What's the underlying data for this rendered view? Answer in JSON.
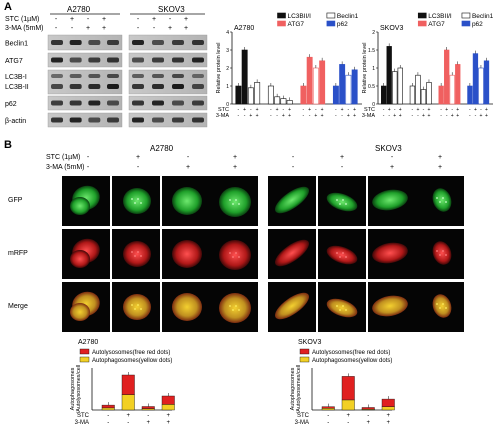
{
  "panel_a": {
    "label": "A",
    "treatment_labels": [
      "STC (1µM)",
      "3-MA (5mM)"
    ],
    "cell_lines": [
      "A2780",
      "SKOV3"
    ],
    "signs": [
      [
        "-",
        "+",
        "-",
        "+"
      ],
      [
        "-",
        "-",
        "+",
        "+"
      ]
    ],
    "blot_rows": [
      "Beclin1",
      "ATG7",
      "LC3B-I",
      "LC3B-II",
      "p62",
      "β-actin"
    ],
    "chart_ylabel": "Relative protein level",
    "chart_xrow_labels": [
      "STC",
      "3-MA"
    ]
  },
  "panel_b": {
    "label": "B",
    "treatment_labels": [
      "STC (1µM)",
      "3-MA (5mM)"
    ],
    "cell_lines": [
      "A2780",
      "SKOV3"
    ],
    "row_labels": [
      "GFP",
      "mRFP",
      "Merge"
    ],
    "chart_ylabel": "Autophagosomes\n/Autolysosomes/cell",
    "chart_xrow_labels": [
      "STC",
      "3-MA"
    ]
  },
  "colors": {
    "red": "#e02020",
    "yellow": "#f2d024",
    "black": "#111111",
    "blue": "#2a50c8",
    "lightred": "#f06060",
    "green": "#2ec83a"
  },
  "chart_data": [
    {
      "type": "bar",
      "title": "A2780",
      "ylabel": "Relative protein level",
      "ylim": [
        0,
        4
      ],
      "groups": [
        "LC3BII/I",
        "Beclin1",
        "ATG7",
        "p62"
      ],
      "categories": [
        "-/-",
        "+/-",
        "-/+",
        "+/+"
      ],
      "series": [
        {
          "name": "LC3BII/I",
          "values": [
            1.0,
            3.0,
            0.9,
            1.2
          ]
        },
        {
          "name": "Beclin1",
          "values": [
            1.0,
            0.4,
            0.3,
            0.2
          ]
        },
        {
          "name": "ATG7",
          "values": [
            1.0,
            2.6,
            2.0,
            2.4
          ]
        },
        {
          "name": "p62",
          "values": [
            1.0,
            2.2,
            1.6,
            1.9
          ]
        }
      ]
    },
    {
      "type": "bar",
      "title": "SKOV3",
      "ylabel": "Relative protein level",
      "ylim": [
        0,
        2
      ],
      "groups": [
        "LC3BII/I",
        "Beclin1",
        "ATG7",
        "p62"
      ],
      "categories": [
        "-/-",
        "+/-",
        "-/+",
        "+/+"
      ],
      "series": [
        {
          "name": "LC3BII/I",
          "values": [
            0.5,
            1.6,
            0.9,
            1.0
          ]
        },
        {
          "name": "Beclin1",
          "values": [
            0.5,
            0.8,
            0.4,
            0.6
          ]
        },
        {
          "name": "ATG7",
          "values": [
            0.5,
            1.5,
            0.8,
            1.1
          ]
        },
        {
          "name": "p62",
          "values": [
            0.5,
            1.4,
            1.0,
            1.2
          ]
        }
      ]
    },
    {
      "type": "bar",
      "stacked": true,
      "title": "A2780",
      "ylabel": "Autophagosomes /Autolysosomes/cell",
      "categories": [
        "-/-",
        "+/-",
        "-/+",
        "+/+"
      ],
      "series": [
        {
          "name": "Autolysosomes(free red dots)",
          "values": [
            4,
            28,
            3,
            12
          ]
        },
        {
          "name": "Autophagosomes(yellow dots)",
          "values": [
            3,
            22,
            2,
            8
          ]
        }
      ]
    },
    {
      "type": "bar",
      "stacked": true,
      "title": "SKOV3",
      "ylabel": "Autophagosomes /Autolysosomes/cell",
      "categories": [
        "-/-",
        "+/-",
        "-/+",
        "+/+"
      ],
      "series": [
        {
          "name": "Autolysosomes(free red dots)",
          "values": [
            2,
            28,
            2,
            9
          ]
        },
        {
          "name": "Autophagosomes(yellow dots)",
          "values": [
            2,
            12,
            1,
            4
          ]
        }
      ]
    }
  ]
}
